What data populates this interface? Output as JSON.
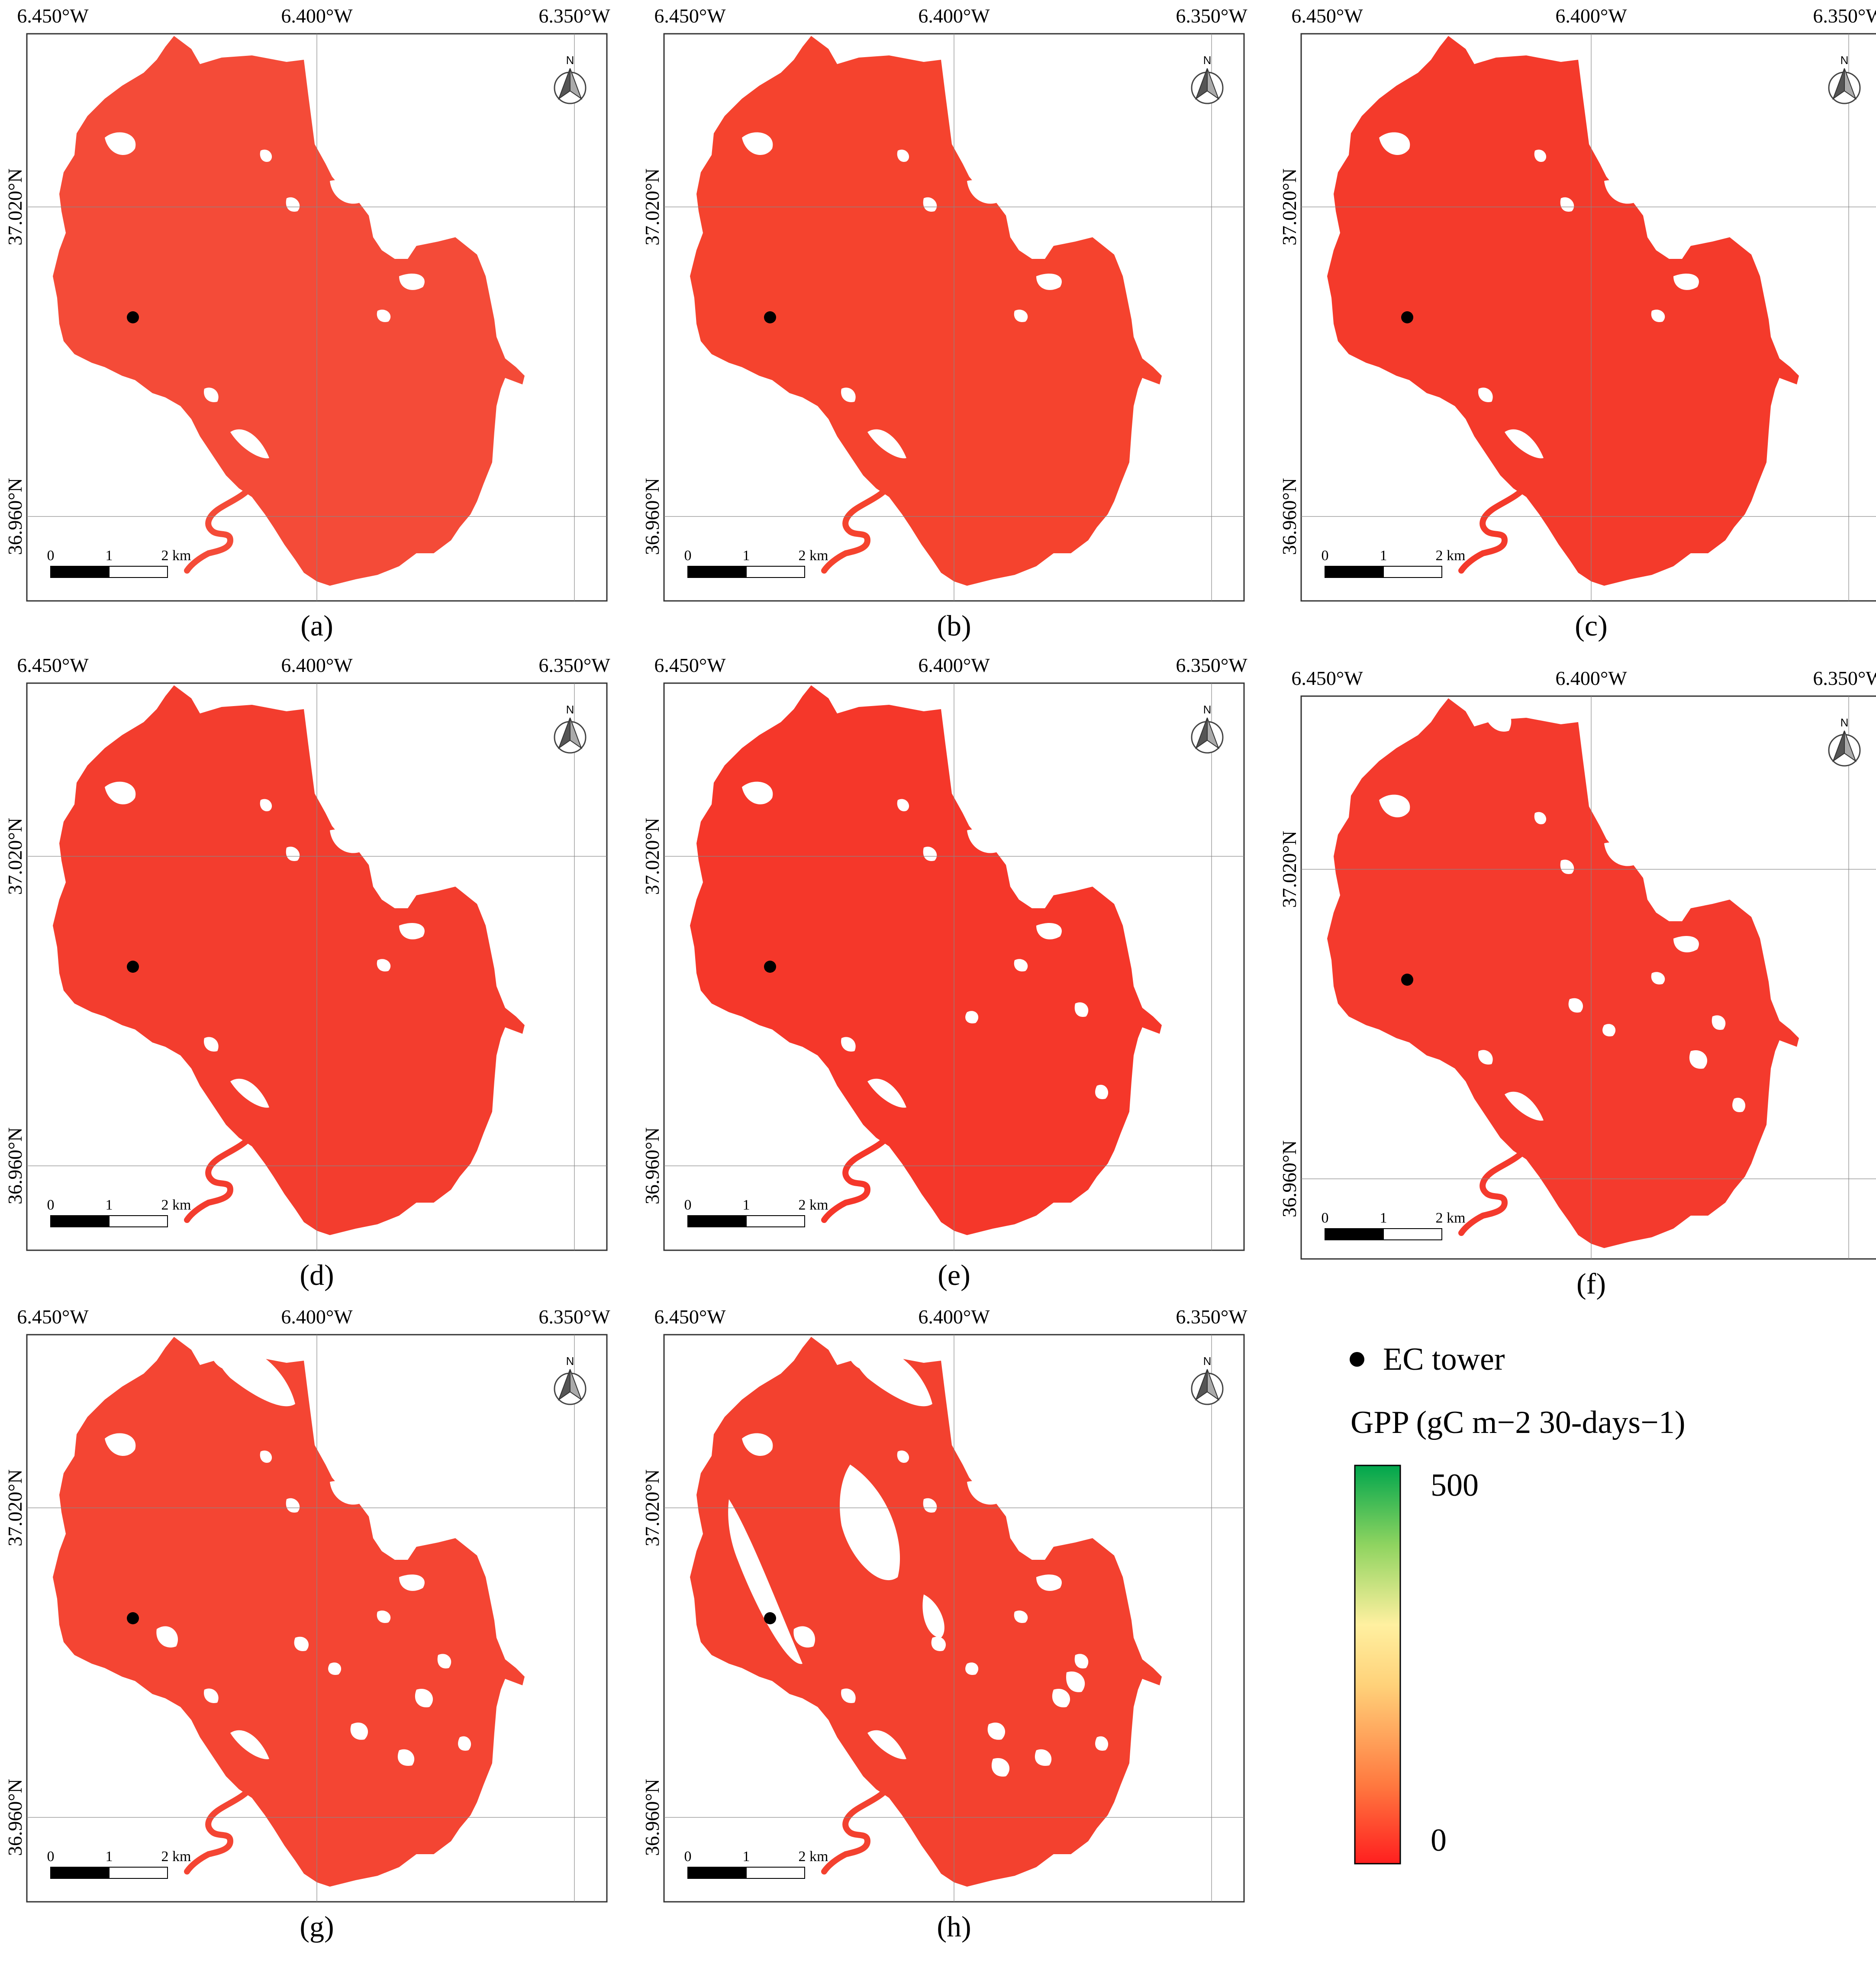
{
  "lon_labels": [
    "6.450°W",
    "6.400°W",
    "6.350°W"
  ],
  "lat_labels": [
    "37.020°N",
    "36.960°N"
  ],
  "north_label": "N",
  "scalebar_labels": [
    "0",
    "1",
    "2 km"
  ],
  "panels": [
    {
      "id": "a",
      "caption": "(a)",
      "fill": "#f44b38",
      "gap_level": 0
    },
    {
      "id": "b",
      "caption": "(b)",
      "fill": "#f5432e",
      "gap_level": 0
    },
    {
      "id": "c",
      "caption": "(c)",
      "fill": "#f43a2b",
      "gap_level": 0
    },
    {
      "id": "d",
      "caption": "(d)",
      "fill": "#f33d2e",
      "gap_level": 0
    },
    {
      "id": "e",
      "caption": "(e)",
      "fill": "#f5372a",
      "gap_level": 1
    },
    {
      "id": "f",
      "caption": "(f)",
      "fill": "#f43a2d",
      "gap_level": 2
    },
    {
      "id": "g",
      "caption": "(g)",
      "fill": "#f44533",
      "gap_level": 3
    },
    {
      "id": "h",
      "caption": "(h)",
      "fill": "#f3412f",
      "gap_level": 4
    }
  ],
  "legend": {
    "ec_tower_label": "EC tower",
    "gpp_title": "GPP (gC m−2 30-days−1)",
    "max_label": "500",
    "min_label": "0",
    "colors": [
      "#ff1f1f",
      "#ff7a40",
      "#ffd27a",
      "#fff0a0",
      "#8fd460",
      "#00a64d"
    ]
  }
}
